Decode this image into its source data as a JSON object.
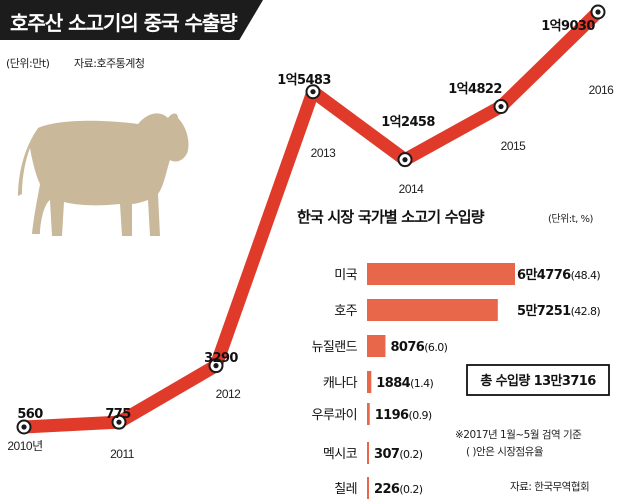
{
  "title": "호주산 소고기의 중국 수출량",
  "unit_note": "(단위:만t)",
  "source_note": "자료:호주통계청",
  "line_chart": {
    "points": [
      {
        "year": "2010년",
        "value": 560,
        "label": "560"
      },
      {
        "year": "2011",
        "value": 775,
        "label": "775"
      },
      {
        "year": "2012",
        "value": 3290,
        "label": "3290"
      },
      {
        "year": "2013",
        "value": 15483,
        "label": "1억5483"
      },
      {
        "year": "2014",
        "value": 12458,
        "label": "1억2458"
      },
      {
        "year": "2015",
        "value": 14822,
        "label": "1억4822"
      },
      {
        "year": "2016",
        "value": 19030,
        "label": "1억9030"
      }
    ],
    "line_color": "#e03a2a"
  },
  "bar_chart": {
    "title": "한국 시장 국가별 소고기 수입량",
    "unit": "(단위:t, %)",
    "bar_color": "#e8674a",
    "items": [
      {
        "country": "미국",
        "value": 64776,
        "value_label": "6만4776",
        "share": "(48.4)"
      },
      {
        "country": "호주",
        "value": 57251,
        "value_label": "5만7251",
        "share": "(42.8)"
      },
      {
        "country": "뉴질랜드",
        "value": 8076,
        "value_label": "8076",
        "share": "(6.0)"
      },
      {
        "country": "캐나다",
        "value": 1884,
        "value_label": "1884",
        "share": "(1.4)"
      },
      {
        "country": "우루과이",
        "value": 1196,
        "value_label": "1196",
        "share": "(0.9)"
      },
      {
        "country": "멕시코",
        "value": 307,
        "value_label": "307",
        "share": "(0.2)"
      },
      {
        "country": "칠레",
        "value": 226,
        "value_label": "226",
        "share": "(0.2)"
      }
    ]
  },
  "total_box": "총 수입량 13만3716",
  "footnote_1": "※2017년 1월~5월 검역 기준",
  "footnote_2": "(  )안은 시장점유율",
  "source_bottom": "자료: 한국무역협회",
  "cow_color": "#c9b99a",
  "chart_data": [
    {
      "type": "line",
      "title": "호주산 소고기의 중국 수출량",
      "x": [
        "2010년",
        "2011",
        "2012",
        "2013",
        "2014",
        "2015",
        "2016"
      ],
      "series": [
        {
          "values": [
            560,
            775,
            3290,
            15483,
            12458,
            14822,
            19030
          ]
        }
      ],
      "ylabel": "(단위:만t)",
      "grid": false
    },
    {
      "type": "bar",
      "orientation": "horizontal",
      "title": "한국 시장 국가별 소고기 수입량",
      "categories": [
        "미국",
        "호주",
        "뉴질랜드",
        "캐나다",
        "우루과이",
        "멕시코",
        "칠레"
      ],
      "values": [
        64776,
        57251,
        8076,
        1884,
        1196,
        307,
        226
      ],
      "shares_percent": [
        48.4,
        42.8,
        6.0,
        1.4,
        0.9,
        0.2,
        0.2
      ],
      "unit": "(단위:t, %)",
      "grid": false
    }
  ]
}
